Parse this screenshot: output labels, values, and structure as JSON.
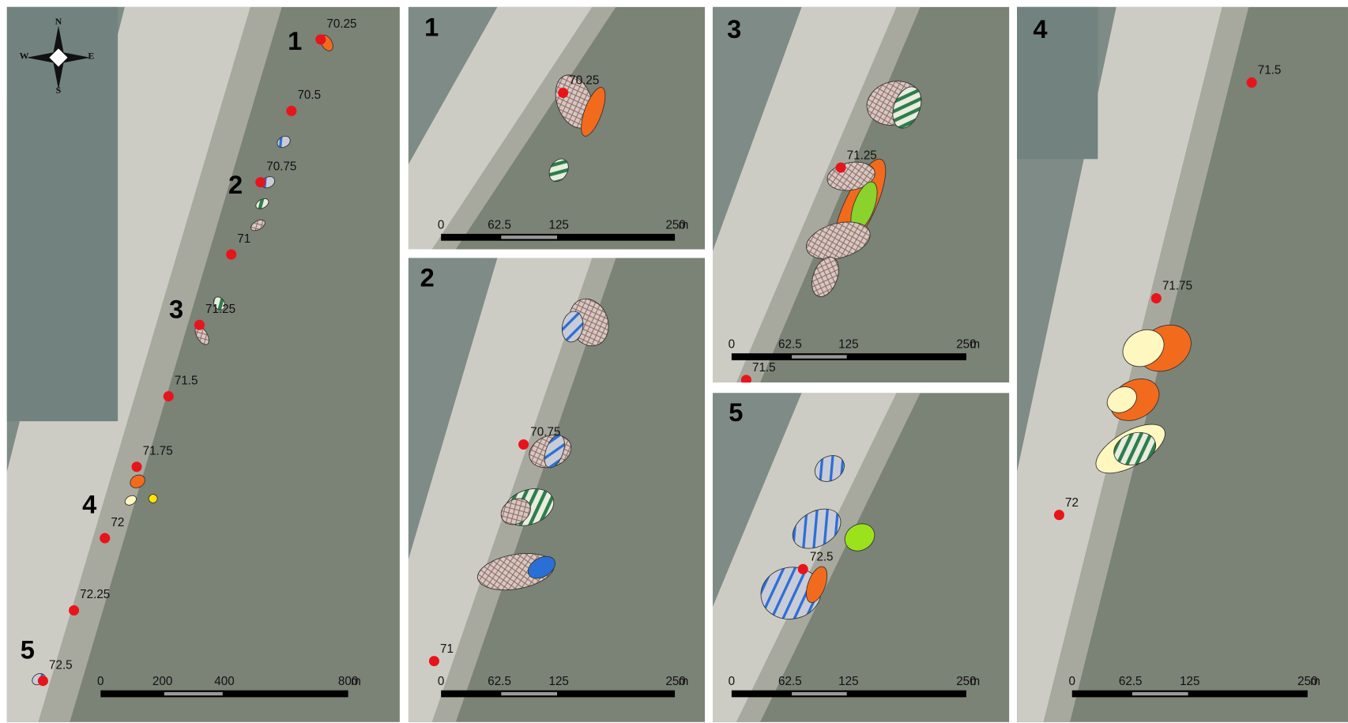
{
  "overview": {
    "compass": {
      "n": "N",
      "s": "S",
      "w": "W",
      "e": "E"
    },
    "sites": [
      "1",
      "2",
      "3",
      "4",
      "5"
    ],
    "markers": [
      "70.25",
      "70.5",
      "70.75",
      "71",
      "71.25",
      "71.5",
      "71.75",
      "72",
      "72.25",
      "72.5"
    ],
    "scale": [
      "0",
      "200",
      "400",
      "800",
      "m"
    ]
  },
  "panels": [
    {
      "label": "1",
      "markers": [
        "70.25"
      ],
      "scale": [
        "0",
        "62.5",
        "125",
        "250",
        "m"
      ]
    },
    {
      "label": "2",
      "markers": [
        "70.75",
        "71"
      ],
      "scale": [
        "0",
        "62.5",
        "125",
        "250",
        "m"
      ]
    },
    {
      "label": "3",
      "markers": [
        "71.25",
        "71.5"
      ],
      "scale": [
        "0",
        "62.5",
        "125",
        "250",
        "m"
      ]
    },
    {
      "label": "5",
      "markers": [
        "72.5"
      ],
      "scale": [
        "0",
        "62.5",
        "125",
        "250",
        "m"
      ]
    },
    {
      "label": "4",
      "markers": [
        "71.5",
        "71.75",
        "72"
      ],
      "scale": [
        "0",
        "62.5",
        "125",
        "250",
        "m"
      ]
    }
  ]
}
